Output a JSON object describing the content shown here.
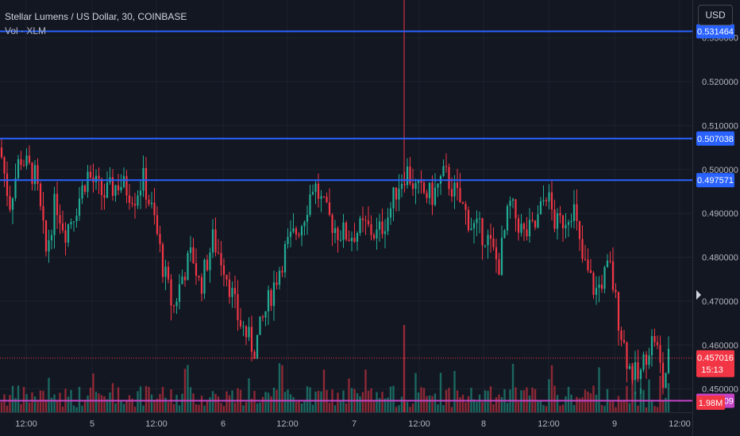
{
  "legend": {
    "title": "Stellar Lumens / US Dollar, 30, COINBASE",
    "volume": "Vol · XLM"
  },
  "currency_button": "USD",
  "chart_data": {
    "type": "candlestick",
    "price_axis": {
      "ticks": [
        "0.530000",
        "0.520000",
        "0.510000",
        "0.500000",
        "0.490000",
        "0.480000",
        "0.470000",
        "0.460000",
        "0.450000"
      ],
      "range": [
        0.4447,
        0.5386
      ]
    },
    "time_axis": {
      "ticks": [
        "12:00",
        "5",
        "12:00",
        "6",
        "12:00",
        "7",
        "12:00",
        "8",
        "12:00",
        "9",
        "12:00"
      ]
    },
    "horizontal_lines": [
      {
        "price": 0.531464,
        "label": "0.531464",
        "color": "#2962ff"
      },
      {
        "price": 0.507038,
        "label": "0.507038",
        "color": "#2962ff"
      },
      {
        "price": 0.497571,
        "label": "0.497571",
        "color": "#2962ff"
      },
      {
        "price": 0.447309,
        "label": "0.447309",
        "color": "#c543c5"
      }
    ],
    "last_price": {
      "price": 0.457016,
      "label": "0.457016",
      "countdown": "15:13",
      "color": "#f23645"
    },
    "volume_label": "1.98M",
    "colors": {
      "up": "#22ab94",
      "down": "#f23645",
      "volume_up": "#1a7a6a",
      "volume_down": "#9e2b35"
    },
    "anchors": [
      [
        0,
        0.505
      ],
      [
        12,
        0.492
      ],
      [
        25,
        0.503
      ],
      [
        45,
        0.498
      ],
      [
        58,
        0.481
      ],
      [
        70,
        0.493
      ],
      [
        82,
        0.486
      ],
      [
        95,
        0.491
      ],
      [
        110,
        0.499
      ],
      [
        130,
        0.494
      ],
      [
        150,
        0.497
      ],
      [
        170,
        0.494
      ],
      [
        180,
        0.498
      ],
      [
        195,
        0.488
      ],
      [
        205,
        0.478
      ],
      [
        218,
        0.468
      ],
      [
        230,
        0.476
      ],
      [
        242,
        0.481
      ],
      [
        252,
        0.473
      ],
      [
        268,
        0.484
      ],
      [
        283,
        0.478
      ],
      [
        300,
        0.466
      ],
      [
        320,
        0.459
      ],
      [
        340,
        0.471
      ],
      [
        360,
        0.482
      ],
      [
        380,
        0.488
      ],
      [
        395,
        0.497
      ],
      [
        410,
        0.49
      ],
      [
        425,
        0.486
      ],
      [
        440,
        0.485
      ],
      [
        460,
        0.487
      ],
      [
        475,
        0.485
      ],
      [
        490,
        0.49
      ],
      [
        500,
        0.496
      ],
      [
        512,
        0.5
      ],
      [
        525,
        0.495
      ],
      [
        545,
        0.494
      ],
      [
        560,
        0.499
      ],
      [
        575,
        0.494
      ],
      [
        595,
        0.487
      ],
      [
        612,
        0.485
      ],
      [
        628,
        0.478
      ],
      [
        642,
        0.492
      ],
      [
        660,
        0.485
      ],
      [
        675,
        0.487
      ],
      [
        688,
        0.495
      ],
      [
        700,
        0.487
      ],
      [
        712,
        0.489
      ],
      [
        722,
        0.492
      ],
      [
        732,
        0.48
      ],
      [
        750,
        0.472
      ],
      [
        768,
        0.478
      ],
      [
        780,
        0.465
      ],
      [
        792,
        0.455
      ],
      [
        805,
        0.452
      ],
      [
        815,
        0.459
      ],
      [
        825,
        0.462
      ],
      [
        835,
        0.451
      ],
      [
        842,
        0.457
      ]
    ]
  }
}
